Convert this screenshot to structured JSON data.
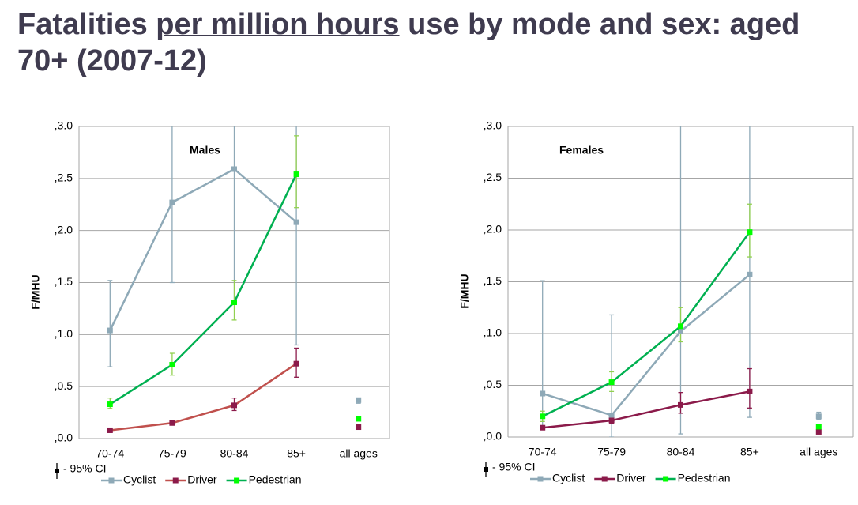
{
  "title": {
    "start": "Fatalities",
    "underlined": "per million hours",
    "end": "use by mode and sex: aged 70+ (2007-12)"
  },
  "chart_data": [
    {
      "type": "line",
      "subtitle": "Males",
      "ylabel": "F/MHU",
      "ci_label": "- 95% CI",
      "categories": [
        "70-74",
        "75-79",
        "80-84",
        "85+",
        "all ages"
      ],
      "ylim": [
        0,
        3
      ],
      "grid": true,
      "yticks": [
        {
          "value": 0,
          "label": ",0.0"
        },
        {
          "value": 0.5,
          "label": ",0.5"
        },
        {
          "value": 1,
          "label": ",1.0"
        },
        {
          "value": 1.5,
          "label": ",1.5"
        },
        {
          "value": 2,
          "label": ",2.0"
        },
        {
          "value": 2.5,
          "label": ",2.5"
        },
        {
          "value": 3,
          "label": ",3.0"
        }
      ],
      "series": [
        {
          "name": "Cyclist",
          "color": "#8ea9b7",
          "marker_color": "#8ea9b7",
          "ci_color": "#8ea9b7",
          "values": [
            1.04,
            2.27,
            2.59,
            2.08,
            0.37
          ],
          "ci_low": [
            0.69,
            1.5,
            1.3,
            0.9,
            0.34
          ],
          "ci_high": [
            1.52,
            3.2,
            3.2,
            3.2,
            0.39
          ]
        },
        {
          "name": "Driver",
          "color": "#c0504d",
          "marker_color": "#8b1a4a",
          "ci_color": "#8b1a4a",
          "values": [
            0.08,
            0.15,
            0.32,
            0.72,
            0.11
          ],
          "ci_low": [
            0.07,
            0.13,
            0.27,
            0.59,
            0.1
          ],
          "ci_high": [
            0.09,
            0.17,
            0.39,
            0.87,
            0.12
          ]
        },
        {
          "name": "Pedestrian",
          "color": "#00b050",
          "marker_color": "#00ff00",
          "ci_color": "#92d050",
          "values": [
            0.33,
            0.71,
            1.31,
            2.54,
            0.19
          ],
          "ci_low": [
            0.29,
            0.61,
            1.14,
            2.22,
            0.18
          ],
          "ci_high": [
            0.39,
            0.82,
            1.52,
            2.91,
            0.2
          ]
        }
      ]
    },
    {
      "type": "line",
      "subtitle": "Females",
      "ylabel": "F/MHU",
      "ci_label": "- 95% CI",
      "categories": [
        "70-74",
        "75-79",
        "80-84",
        "85+",
        "all ages"
      ],
      "ylim": [
        0,
        3
      ],
      "grid": true,
      "yticks": [
        {
          "value": 0,
          "label": ",0.0"
        },
        {
          "value": 0.5,
          "label": ",0.5"
        },
        {
          "value": 1,
          "label": ",1.0"
        },
        {
          "value": 1.5,
          "label": ",1.5"
        },
        {
          "value": 2,
          "label": ",2.0"
        },
        {
          "value": 2.5,
          "label": ",2.5"
        },
        {
          "value": 3,
          "label": ",3.0"
        }
      ],
      "series": [
        {
          "name": "Cyclist",
          "color": "#8ea9b7",
          "marker_color": "#8ea9b7",
          "ci_color": "#8ea9b7",
          "values": [
            0.42,
            0.21,
            1.02,
            1.57,
            0.2
          ],
          "ci_low": [
            0.08,
            0.0,
            0.03,
            0.19,
            0.17
          ],
          "ci_high": [
            1.51,
            1.18,
            3.2,
            3.2,
            0.24
          ]
        },
        {
          "name": "Driver",
          "color": "#8b1a4a",
          "marker_color": "#8b1a4a",
          "ci_color": "#8b1a4a",
          "values": [
            0.09,
            0.16,
            0.31,
            0.44,
            0.05
          ],
          "ci_low": [
            0.08,
            0.13,
            0.23,
            0.28,
            0.04
          ],
          "ci_high": [
            0.1,
            0.2,
            0.43,
            0.66,
            0.06
          ]
        },
        {
          "name": "Pedestrian",
          "color": "#00b050",
          "marker_color": "#00ff00",
          "ci_color": "#92d050",
          "values": [
            0.2,
            0.53,
            1.07,
            1.98,
            0.1
          ],
          "ci_low": [
            0.15,
            0.44,
            0.92,
            1.74,
            0.09
          ],
          "ci_high": [
            0.25,
            0.63,
            1.25,
            2.25,
            0.11
          ]
        }
      ]
    }
  ]
}
